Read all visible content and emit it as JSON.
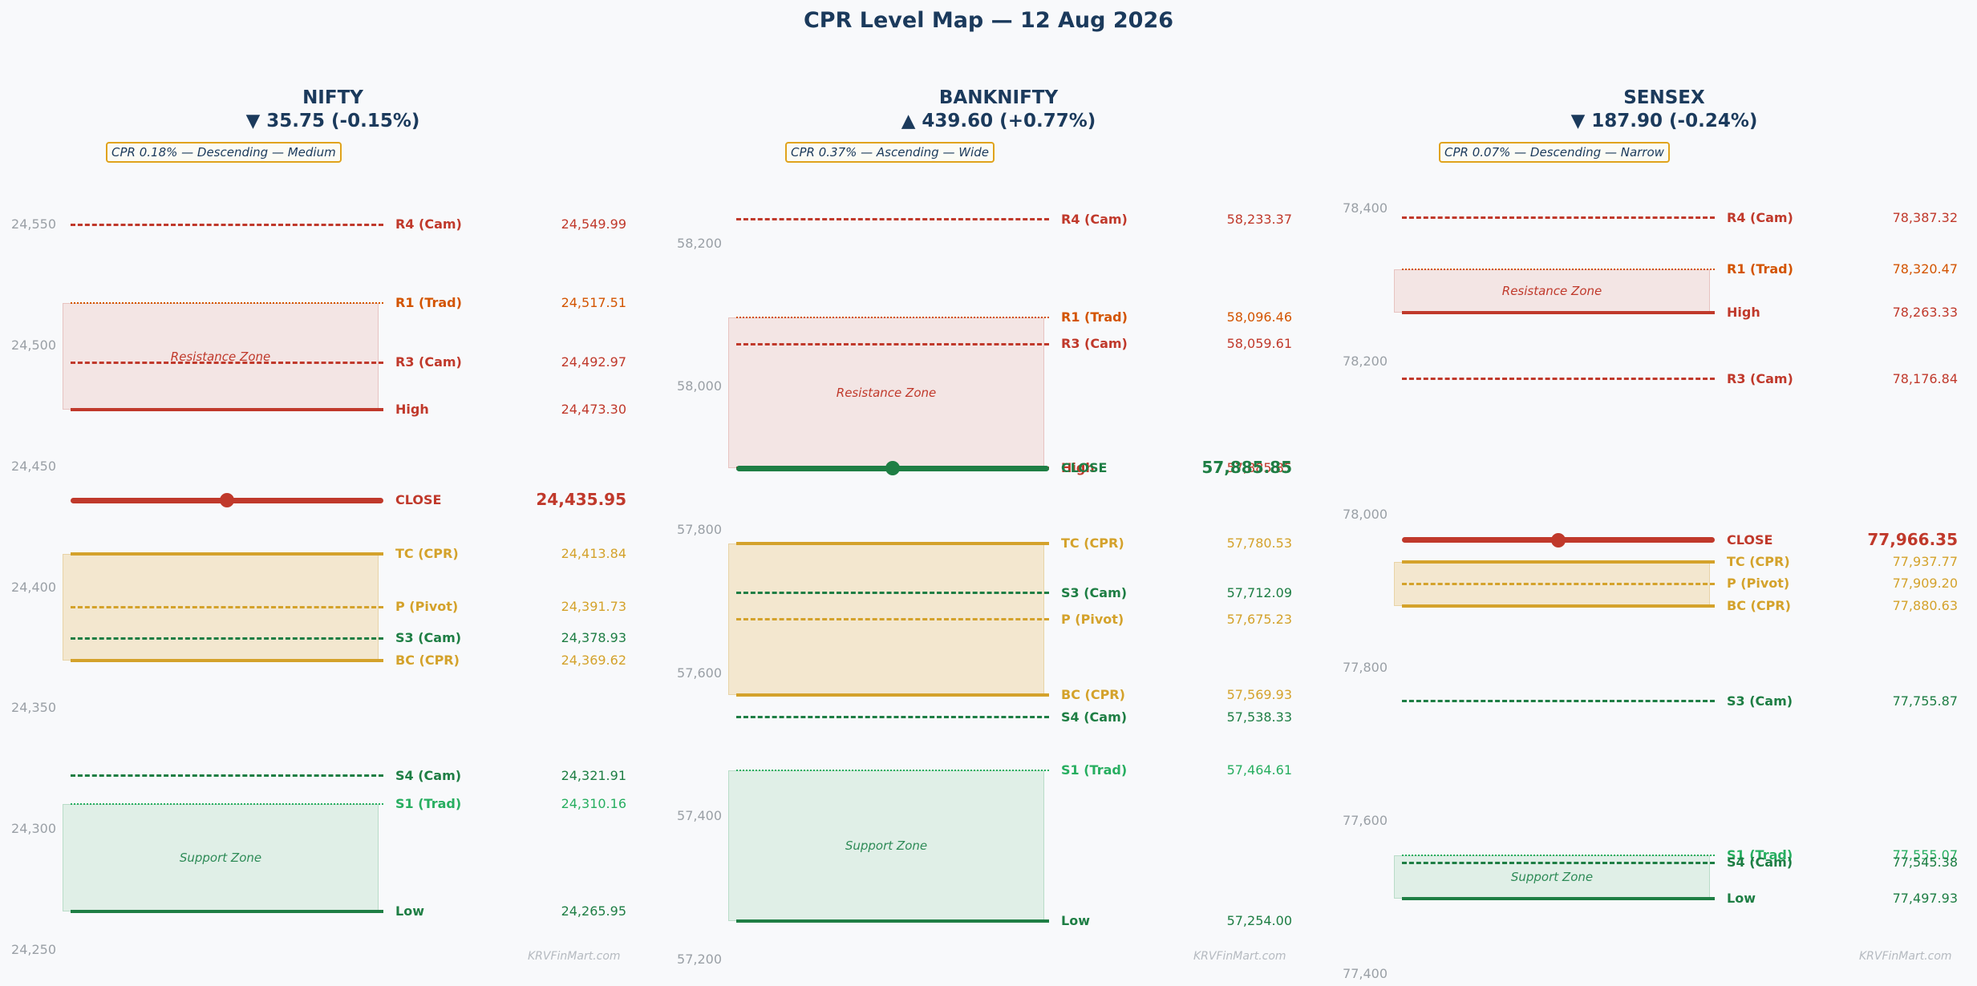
{
  "title": "CPR Level Map — 12 Aug 2026",
  "watermark": "KRVFinMart.com",
  "colors": {
    "resistance": "#c0392b",
    "trad_resistance": "#d35400",
    "support": "#1e7e44",
    "trad_support": "#27ae60",
    "cpr": "#d4a22b",
    "title": "#1b3a5c",
    "resistance_zone": "#f3e5e4",
    "support_zone": "#e0efe7",
    "cpr_zone": "#f3e7cf"
  },
  "chart_data": [
    {
      "type": "line",
      "name": "NIFTY",
      "change": "▼ 35.75 (-0.15%)",
      "cpr_note": "CPR 0.18% — Descending — Medium",
      "ylim": [
        24240,
        24560
      ],
      "yticks": [
        24250,
        24300,
        24350,
        24400,
        24450,
        24500,
        24550
      ],
      "ytick_labels": [
        "24,250",
        "24,300",
        "24,350",
        "24,400",
        "24,450",
        "24,500",
        "24,550"
      ],
      "zones": [
        {
          "label": "Resistance Zone",
          "from": 24473.3,
          "to": 24517.51,
          "kind": "resistance"
        },
        {
          "label": "",
          "from": 24369.62,
          "to": 24413.84,
          "kind": "cpr"
        },
        {
          "label": "Support Zone",
          "from": 24265.95,
          "to": 24310.16,
          "kind": "support"
        }
      ],
      "levels": [
        {
          "name": "R4 (Cam)",
          "value": 24549.99,
          "text": "24,549.99",
          "style": "dashed",
          "color": "resistance"
        },
        {
          "name": "R1 (Trad)",
          "value": 24517.51,
          "text": "24,517.51",
          "style": "dotted",
          "color": "trad_resistance"
        },
        {
          "name": "R3 (Cam)",
          "value": 24492.97,
          "text": "24,492.97",
          "style": "dashed",
          "color": "resistance"
        },
        {
          "name": "High",
          "value": 24473.3,
          "text": "24,473.30",
          "style": "solid",
          "color": "resistance"
        },
        {
          "name": "CLOSE",
          "value": 24435.95,
          "text": "24,435.95",
          "style": "close",
          "color": "resistance"
        },
        {
          "name": "TC (CPR)",
          "value": 24413.84,
          "text": "24,413.84",
          "style": "solid",
          "color": "cpr"
        },
        {
          "name": "P (Pivot)",
          "value": 24391.73,
          "text": "24,391.73",
          "style": "dashed",
          "color": "cpr"
        },
        {
          "name": "S3 (Cam)",
          "value": 24378.93,
          "text": "24,378.93",
          "style": "dashed",
          "color": "support"
        },
        {
          "name": "BC (CPR)",
          "value": 24369.62,
          "text": "24,369.62",
          "style": "solid",
          "color": "cpr"
        },
        {
          "name": "S4 (Cam)",
          "value": 24321.91,
          "text": "24,321.91",
          "style": "dashed",
          "color": "support"
        },
        {
          "name": "S1 (Trad)",
          "value": 24310.16,
          "text": "24,310.16",
          "style": "dotted",
          "color": "trad_support"
        },
        {
          "name": "Low",
          "value": 24265.95,
          "text": "24,265.95",
          "style": "solid",
          "color": "support"
        }
      ]
    },
    {
      "type": "line",
      "name": "BANKNIFTY",
      "change": "▲ 439.60 (+0.77%)",
      "cpr_note": "CPR 0.37% — Ascending — Wide",
      "ylim": [
        57180,
        58260
      ],
      "yticks": [
        57200,
        57400,
        57600,
        57800,
        58000,
        58200
      ],
      "ytick_labels": [
        "57,200",
        "57,400",
        "57,600",
        "57,800",
        "58,000",
        "58,200"
      ],
      "zones": [
        {
          "label": "Resistance Zone",
          "from": 57885.85,
          "to": 58096.46,
          "kind": "resistance"
        },
        {
          "label": "",
          "from": 57569.93,
          "to": 57780.53,
          "kind": "cpr"
        },
        {
          "label": "Support Zone",
          "from": 57254.0,
          "to": 57464.61,
          "kind": "support"
        }
      ],
      "levels": [
        {
          "name": "R4 (Cam)",
          "value": 58233.37,
          "text": "58,233.37",
          "style": "dashed",
          "color": "resistance"
        },
        {
          "name": "R1 (Trad)",
          "value": 58096.46,
          "text": "58,096.46",
          "style": "dotted",
          "color": "trad_resistance"
        },
        {
          "name": "R3 (Cam)",
          "value": 58059.61,
          "text": "58,059.61",
          "style": "dashed",
          "color": "resistance"
        },
        {
          "name": "High",
          "value": 57885.85,
          "text": "57,885.85",
          "style": "solid",
          "color": "resistance"
        },
        {
          "name": "CLOSE",
          "value": 57885.85,
          "text": "57,885.85",
          "style": "close",
          "color": "support"
        },
        {
          "name": "TC (CPR)",
          "value": 57780.53,
          "text": "57,780.53",
          "style": "solid",
          "color": "cpr"
        },
        {
          "name": "S3 (Cam)",
          "value": 57712.09,
          "text": "57,712.09",
          "style": "dashed",
          "color": "support"
        },
        {
          "name": "P (Pivot)",
          "value": 57675.23,
          "text": "57,675.23",
          "style": "dashed",
          "color": "cpr"
        },
        {
          "name": "BC (CPR)",
          "value": 57569.93,
          "text": "57,569.93",
          "style": "solid",
          "color": "cpr"
        },
        {
          "name": "S4 (Cam)",
          "value": 57538.33,
          "text": "57,538.33",
          "style": "dashed",
          "color": "support"
        },
        {
          "name": "S1 (Trad)",
          "value": 57464.61,
          "text": "57,464.61",
          "style": "dotted",
          "color": "trad_support"
        },
        {
          "name": "Low",
          "value": 57254.0,
          "text": "57,254.00",
          "style": "solid",
          "color": "support"
        }
      ]
    },
    {
      "type": "line",
      "name": "SENSEX",
      "change": "▼ 187.90 (-0.24%)",
      "cpr_note": "CPR 0.07% — Descending — Narrow",
      "ylim": [
        77400,
        78410
      ],
      "yticks": [
        77400,
        77600,
        77800,
        78000,
        78200,
        78400
      ],
      "ytick_labels": [
        "77,400",
        "77,600",
        "77,800",
        "78,000",
        "78,200",
        "78,400"
      ],
      "zones": [
        {
          "label": "Resistance Zone",
          "from": 78263.33,
          "to": 78320.47,
          "kind": "resistance"
        },
        {
          "label": "",
          "from": 77880.63,
          "to": 77937.77,
          "kind": "cpr"
        },
        {
          "label": "Support Zone",
          "from": 77497.93,
          "to": 77555.07,
          "kind": "support"
        }
      ],
      "levels": [
        {
          "name": "R4 (Cam)",
          "value": 78387.32,
          "text": "78,387.32",
          "style": "dashed",
          "color": "resistance"
        },
        {
          "name": "R1 (Trad)",
          "value": 78320.47,
          "text": "78,320.47",
          "style": "dotted",
          "color": "trad_resistance"
        },
        {
          "name": "High",
          "value": 78263.33,
          "text": "78,263.33",
          "style": "solid",
          "color": "resistance"
        },
        {
          "name": "R3 (Cam)",
          "value": 78176.84,
          "text": "78,176.84",
          "style": "dashed",
          "color": "resistance"
        },
        {
          "name": "CLOSE",
          "value": 77966.35,
          "text": "77,966.35",
          "style": "close",
          "color": "resistance"
        },
        {
          "name": "TC (CPR)",
          "value": 77937.77,
          "text": "77,937.77",
          "style": "solid",
          "color": "cpr"
        },
        {
          "name": "P (Pivot)",
          "value": 77909.2,
          "text": "77,909.20",
          "style": "dashed",
          "color": "cpr"
        },
        {
          "name": "BC (CPR)",
          "value": 77880.63,
          "text": "77,880.63",
          "style": "solid",
          "color": "cpr"
        },
        {
          "name": "S3 (Cam)",
          "value": 77755.87,
          "text": "77,755.87",
          "style": "dashed",
          "color": "support"
        },
        {
          "name": "S1 (Trad)",
          "value": 77555.07,
          "text": "77,555.07",
          "style": "dotted",
          "color": "trad_support"
        },
        {
          "name": "S4 (Cam)",
          "value": 77545.38,
          "text": "77,545.38",
          "style": "dashed",
          "color": "support"
        },
        {
          "name": "Low",
          "value": 77497.93,
          "text": "77,497.93",
          "style": "solid",
          "color": "support"
        }
      ]
    }
  ]
}
